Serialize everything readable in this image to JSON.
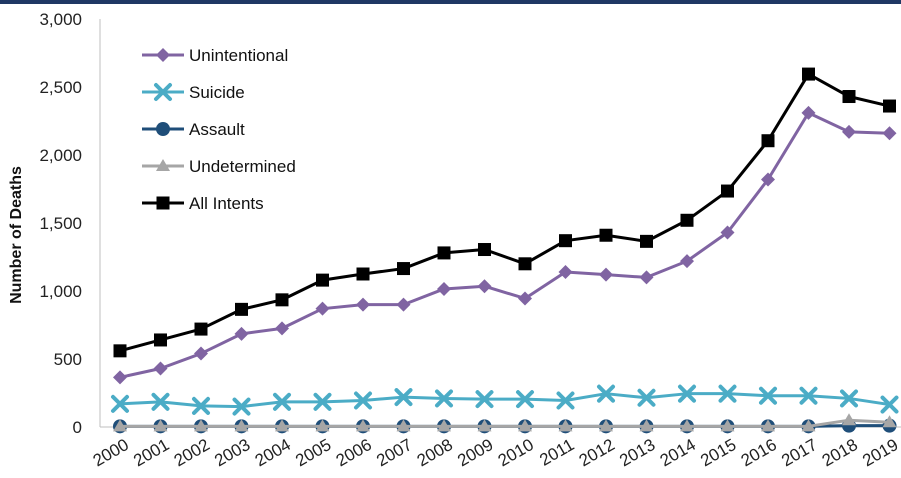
{
  "chart_data": {
    "type": "line",
    "title": "",
    "xlabel": "",
    "ylabel": "Number of Deaths",
    "ylim": [
      0,
      3000
    ],
    "yticks": [
      "0",
      "500",
      "1,000",
      "1,500",
      "2,000",
      "2,500",
      "3,000"
    ],
    "grid": false,
    "legend_position": "top-left",
    "categories": [
      "2000",
      "2001",
      "2002",
      "2003",
      "2004",
      "2005",
      "2006",
      "2007",
      "2008",
      "2009",
      "2010",
      "2011",
      "2012",
      "2013",
      "2014",
      "2015",
      "2016",
      "2017",
      "2018",
      "2019"
    ],
    "series": [
      {
        "name": "Unintentional",
        "color": "#8064a2",
        "marker": "diamond",
        "values": [
          365,
          430,
          540,
          685,
          725,
          870,
          900,
          900,
          1015,
          1035,
          945,
          1140,
          1120,
          1100,
          1220,
          1430,
          1820,
          2310,
          2170,
          2160
        ]
      },
      {
        "name": "Suicide",
        "color": "#4bacc6",
        "marker": "x",
        "values": [
          170,
          185,
          155,
          150,
          185,
          185,
          195,
          220,
          210,
          205,
          205,
          195,
          245,
          215,
          245,
          245,
          230,
          230,
          210,
          165
        ]
      },
      {
        "name": "Assault",
        "color": "#1f4e79",
        "marker": "circle",
        "values": [
          5,
          5,
          5,
          5,
          5,
          5,
          5,
          5,
          5,
          5,
          5,
          5,
          5,
          5,
          5,
          5,
          5,
          5,
          10,
          10
        ]
      },
      {
        "name": "Undetermined",
        "color": "#a6a6a6",
        "marker": "triangle",
        "values": [
          5,
          5,
          5,
          5,
          5,
          5,
          5,
          5,
          5,
          5,
          5,
          5,
          5,
          5,
          5,
          5,
          5,
          5,
          50,
          35
        ]
      },
      {
        "name": "All Intents",
        "color": "#000000",
        "marker": "square",
        "values": [
          560,
          640,
          720,
          865,
          935,
          1080,
          1125,
          1165,
          1280,
          1305,
          1200,
          1370,
          1410,
          1365,
          1520,
          1735,
          2105,
          2595,
          2430,
          2360
        ]
      }
    ]
  }
}
